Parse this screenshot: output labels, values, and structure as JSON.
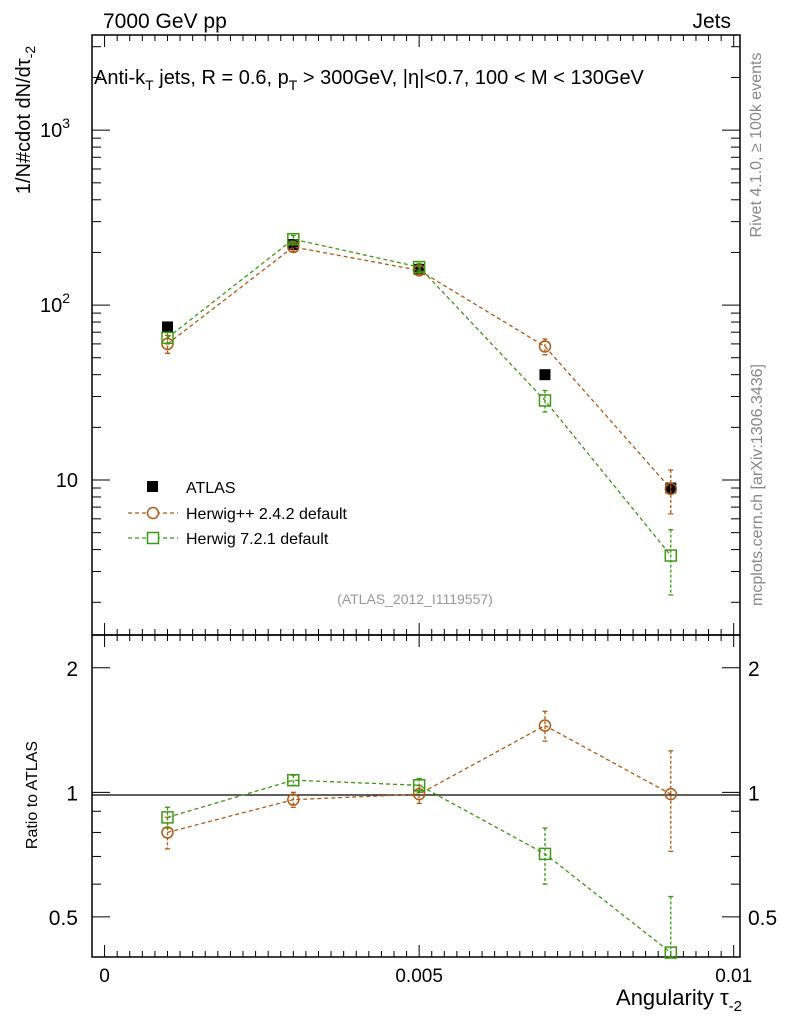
{
  "header": {
    "left": "7000 GeV pp",
    "right": "Jets"
  },
  "side_labels": {
    "rivet": "Rivet 4.1.0, ≥ 100k events",
    "mcplots": "mcplots.cern.ch [arXiv:1306.3436]"
  },
  "analysis_id": "(ATLAS_2012_I1119557)",
  "chart_data": [
    {
      "type": "scatter",
      "panel": "main",
      "title": "Anti-kT jets, R = 0.6, pT > 300GeV, |η|<0.7, 100 < M < 130GeV",
      "xlabel": "Angularity τ-2",
      "ylabel": "1/N#cdot dN/dτ-2",
      "yscale": "log",
      "xlim": [
        -0.0002,
        0.0101
      ],
      "ylim": [
        1.3,
        3500
      ],
      "ytick_labels": [
        "10",
        "10",
        "10"
      ],
      "ytick_exponents": [
        "",
        "2",
        "3"
      ],
      "ytick_values": [
        10,
        100,
        1000
      ],
      "x": [
        0.001,
        0.003,
        0.005,
        0.007,
        0.009
      ],
      "series": [
        {
          "name": "ATLAS",
          "color": "#000000",
          "marker": "filled-square",
          "line": "none",
          "values": [
            75,
            222,
            160,
            40,
            9.0
          ],
          "err": [
            0,
            0,
            0,
            0,
            0
          ]
        },
        {
          "name": "Herwig++ 2.4.2 default",
          "color": "#b15a12",
          "marker": "open-circle",
          "line": "dashed",
          "values": [
            60,
            215,
            158,
            58,
            8.9
          ],
          "err": [
            7,
            12,
            8,
            6,
            2.5
          ]
        },
        {
          "name": "Herwig 7.2.1 default",
          "color": "#3b9a12",
          "marker": "open-square",
          "line": "dashed",
          "values": [
            65,
            238,
            165,
            28.5,
            3.7
          ],
          "err": [
            5,
            12,
            8,
            4,
            1.5
          ]
        }
      ],
      "legend": "bottom-left"
    },
    {
      "type": "scatter",
      "panel": "ratio",
      "ylabel": "Ratio to ATLAS",
      "xlabel": "Angularity τ-2",
      "ylim": [
        0.4,
        2.4
      ],
      "yticks": [
        0.5,
        1,
        2
      ],
      "ytick_labels": [
        "0.5",
        "1",
        "2"
      ],
      "xticks": [
        0,
        0.005,
        0.01
      ],
      "xtick_labels": [
        "0",
        "0.005",
        "0.01"
      ],
      "x": [
        0.001,
        0.003,
        0.005,
        0.007,
        0.009
      ],
      "series": [
        {
          "name": "Herwig++ 2.4.2 default",
          "color": "#b15a12",
          "marker": "open-circle",
          "line": "dashed",
          "values": [
            0.8,
            0.96,
            0.99,
            1.45,
            0.99
          ],
          "err": [
            0.07,
            0.04,
            0.05,
            0.12,
            0.27
          ]
        },
        {
          "name": "Herwig 7.2.1 default",
          "color": "#3b9a12",
          "marker": "open-square",
          "line": "dashed",
          "values": [
            0.87,
            1.07,
            1.04,
            0.71,
            0.41
          ],
          "err": [
            0.05,
            0.03,
            0.04,
            0.11,
            0.15
          ]
        }
      ]
    }
  ]
}
